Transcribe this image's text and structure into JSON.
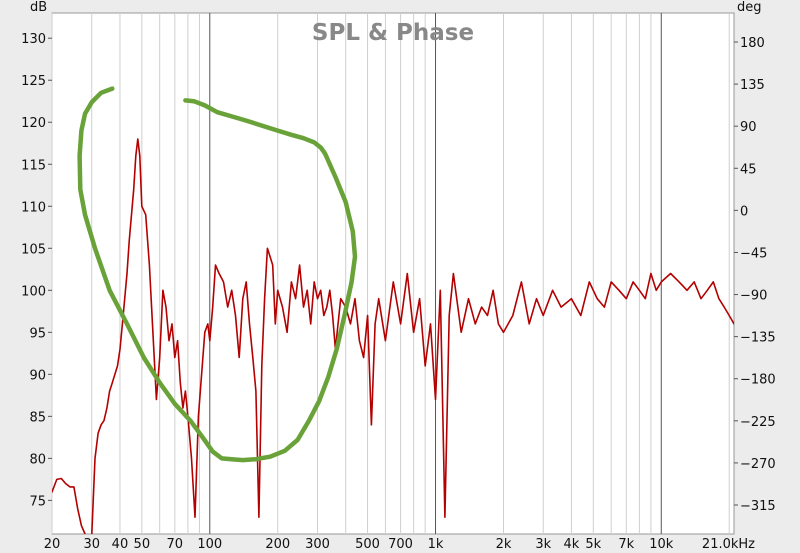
{
  "chart_data": {
    "type": "line",
    "title": "SPL & Phase",
    "left_unit": "dB",
    "right_unit": "deg",
    "x_scale": "log",
    "xlim": [
      20,
      21000
    ],
    "ylim_left": [
      71,
      133
    ],
    "ylim_right": [
      -346,
      211
    ],
    "x_ticks": [
      {
        "v": 20,
        "label": "20"
      },
      {
        "v": 30,
        "label": "30"
      },
      {
        "v": 40,
        "label": "40"
      },
      {
        "v": 50,
        "label": "50"
      },
      {
        "v": 70,
        "label": "70"
      },
      {
        "v": 100,
        "label": "100"
      },
      {
        "v": 200,
        "label": "200"
      },
      {
        "v": 300,
        "label": "300"
      },
      {
        "v": 500,
        "label": "500"
      },
      {
        "v": 700,
        "label": "700"
      },
      {
        "v": 1000,
        "label": "1k"
      },
      {
        "v": 2000,
        "label": "2k"
      },
      {
        "v": 3000,
        "label": "3k"
      },
      {
        "v": 4000,
        "label": "4k"
      },
      {
        "v": 5000,
        "label": "5k"
      },
      {
        "v": 7000,
        "label": "7k"
      },
      {
        "v": 10000,
        "label": "10k"
      },
      {
        "v": 21000,
        "label": "21.0kHz"
      }
    ],
    "y_ticks_left": [
      75,
      80,
      85,
      90,
      95,
      100,
      105,
      110,
      115,
      120,
      125,
      130
    ],
    "y_ticks_right": [
      -315,
      -270,
      -225,
      -180,
      -135,
      -90,
      -45,
      0,
      45,
      90,
      135,
      180
    ],
    "grid": true,
    "series": [
      {
        "kind": "spl",
        "color": "#b30000",
        "x": [
          20,
          21,
          22,
          23,
          24,
          25,
          26,
          27,
          28,
          29,
          30,
          31,
          32,
          33,
          34,
          35,
          36,
          37,
          38,
          39,
          40,
          41,
          42,
          43,
          44,
          45,
          46,
          47,
          48,
          49,
          50,
          52,
          54,
          56,
          58,
          60,
          62,
          64,
          66,
          68,
          70,
          72,
          74,
          76,
          78,
          80,
          83,
          86,
          89,
          92,
          95,
          98,
          100,
          103,
          106,
          110,
          115,
          120,
          125,
          130,
          135,
          140,
          145,
          150,
          155,
          160,
          165,
          170,
          175,
          180,
          185,
          190,
          195,
          200,
          210,
          220,
          230,
          240,
          250,
          260,
          270,
          280,
          290,
          300,
          310,
          320,
          330,
          340,
          350,
          360,
          380,
          400,
          420,
          440,
          460,
          480,
          500,
          520,
          540,
          560,
          600,
          650,
          700,
          750,
          800,
          850,
          900,
          950,
          1000,
          1050,
          1100,
          1150,
          1200,
          1300,
          1400,
          1500,
          1600,
          1700,
          1800,
          1900,
          2000,
          2200,
          2400,
          2600,
          2800,
          3000,
          3300,
          3600,
          4000,
          4400,
          4800,
          5200,
          5600,
          6000,
          6500,
          7000,
          7500,
          8000,
          8500,
          9000,
          9500,
          10000,
          11000,
          12000,
          13000,
          14000,
          15000,
          16000,
          17000,
          18000,
          19000,
          20000,
          21000
        ],
        "y": [
          76,
          77.5,
          77.6,
          77,
          76.6,
          76.6,
          74,
          72,
          71,
          70,
          71,
          80,
          83,
          84,
          84.5,
          86,
          88,
          89,
          90,
          91,
          93,
          96,
          99,
          102,
          106,
          109,
          112,
          116,
          118,
          116,
          110,
          109,
          103,
          95,
          87,
          92,
          100,
          98,
          94,
          96,
          92,
          94,
          89,
          86,
          88,
          85,
          80,
          73,
          85,
          90,
          95,
          96,
          94,
          98,
          103,
          102,
          101,
          98,
          100,
          97,
          92,
          99,
          101,
          96,
          92,
          88,
          73,
          91,
          99,
          105,
          104,
          103,
          96,
          100,
          98,
          95,
          101,
          99,
          103,
          98,
          100,
          96,
          101,
          99,
          100,
          97,
          98,
          100,
          97,
          93,
          99,
          98,
          96,
          99,
          94,
          92,
          97,
          84,
          96,
          99,
          94,
          101,
          96,
          102,
          95,
          99,
          91,
          96,
          87,
          100,
          73,
          97,
          102,
          95,
          99,
          96,
          98,
          97,
          100,
          96,
          95,
          97,
          101,
          96,
          99,
          97,
          100,
          98,
          99,
          97,
          101,
          99,
          98,
          101,
          100,
          99,
          101,
          100,
          99,
          102,
          100,
          101,
          102,
          101,
          100,
          101,
          99,
          100,
          101,
          99,
          98,
          97,
          96
        ]
      },
      {
        "kind": "phase",
        "color": "#6aa23a",
        "x": [
          37,
          33,
          30,
          28,
          27,
          26.5,
          26.7,
          28,
          31,
          36,
          43,
          51,
          60,
          70,
          82,
          93,
          103,
          113,
          125,
          140,
          160,
          185,
          215,
          245,
          275,
          305,
          335,
          365,
          395,
          425,
          440,
          430,
          400,
          360,
          330,
          325,
          320,
          310,
          290,
          260,
          230,
          200,
          170,
          145,
          125,
          108,
          95,
          85,
          78
        ],
        "y": [
          124,
          123.5,
          122.4,
          121,
          119,
          116,
          112,
          109,
          105,
          100,
          96,
          92,
          89,
          86.5,
          84.5,
          82.5,
          80.8,
          80,
          79.9,
          79.8,
          79.9,
          80.2,
          80.9,
          82.2,
          84.5,
          86.8,
          89.7,
          93,
          97,
          101,
          104,
          107,
          110.5,
          113.5,
          115.8,
          116.2,
          116.5,
          117,
          117.6,
          118.1,
          118.5,
          119,
          119.6,
          120.2,
          120.7,
          121.2,
          122,
          122.5,
          122.6
        ]
      }
    ]
  }
}
